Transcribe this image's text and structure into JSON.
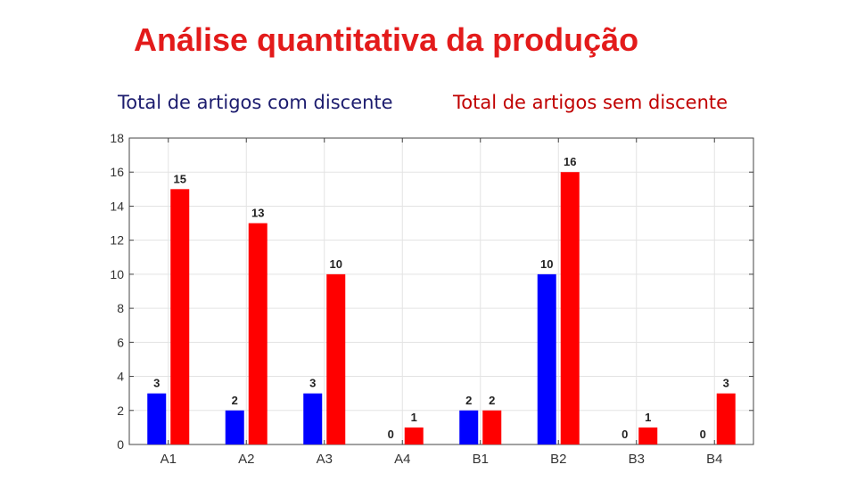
{
  "title": "Análise quantitativa da produção",
  "legend": {
    "blue_label": "Total de artigos com discente",
    "red_label": "Total de artigos sem discente"
  },
  "colors": {
    "title": "#e31b1b",
    "blue_series": "#0000ff",
    "red_series": "#ff0000",
    "blue_legend_text": "#1c1c6e",
    "red_legend_text": "#c00000"
  },
  "chart_data": {
    "type": "bar",
    "categories": [
      "A1",
      "A2",
      "A3",
      "A4",
      "B1",
      "B2",
      "B3",
      "B4"
    ],
    "series": [
      {
        "name": "Total de artigos com discente",
        "color": "#0000ff",
        "values": [
          3,
          2,
          3,
          0,
          2,
          10,
          0,
          0
        ]
      },
      {
        "name": "Total de artigos sem discente",
        "color": "#ff0000",
        "values": [
          15,
          13,
          10,
          1,
          2,
          16,
          1,
          3
        ]
      }
    ],
    "ylim": [
      0,
      18
    ],
    "yticks": [
      0,
      2,
      4,
      6,
      8,
      10,
      12,
      14,
      16,
      18
    ],
    "grid": true,
    "data_labels": true,
    "legend_position": "top"
  }
}
